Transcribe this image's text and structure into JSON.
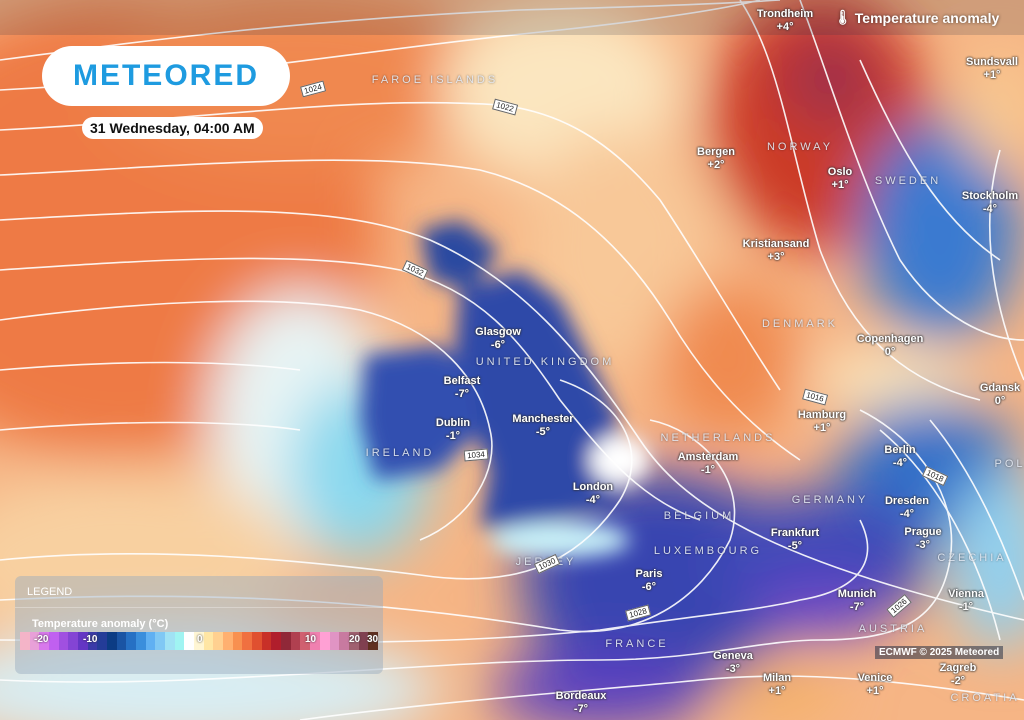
{
  "brand": "METEORED",
  "date_label": "31 Wednesday, 04:00 AM",
  "layer_title": "Temperature anomaly",
  "layer_icon": "thermometer-icon",
  "copyright": "ECMWF © 2025 Meteored",
  "legend": {
    "title": "LEGEND",
    "subtitle": "Temperature anomaly (°C)",
    "labels": [
      "-20",
      "-10",
      "0",
      "10",
      "20",
      "30"
    ],
    "colors": [
      "#f4b4c8",
      "#e8a0d8",
      "#d878ec",
      "#c060f0",
      "#a050e0",
      "#8444d4",
      "#6436c4",
      "#3a3aa8",
      "#243c98",
      "#0c3c84",
      "#1a54a4",
      "#2670c4",
      "#3a8edc",
      "#60b0f2",
      "#80c8f4",
      "#a0e2f4",
      "#a0f4f2",
      "#ffffff",
      "#fff6d4",
      "#ffe6a4",
      "#ffd090",
      "#ffb070",
      "#f89050",
      "#f07040",
      "#e05030",
      "#c83028",
      "#b01e2c",
      "#902838",
      "#b04050",
      "#d06070",
      "#f080b0",
      "#ffa0d4",
      "#e094c4",
      "#c87aa0",
      "#a06070",
      "#804050",
      "#603020"
    ]
  },
  "cities": [
    {
      "name": "Trondheim",
      "temp": "+4°"
    },
    {
      "name": "Sundsvall",
      "temp": "+1°"
    },
    {
      "name": "Bergen",
      "temp": "+2°"
    },
    {
      "name": "Oslo",
      "temp": "+1°"
    },
    {
      "name": "Stockholm",
      "temp": "-4°"
    },
    {
      "name": "Kristiansand",
      "temp": "+3°"
    },
    {
      "name": "Glasgow",
      "temp": "-6°"
    },
    {
      "name": "Belfast",
      "temp": "-7°"
    },
    {
      "name": "Dublin",
      "temp": "-1°"
    },
    {
      "name": "Manchester",
      "temp": "-5°"
    },
    {
      "name": "Copenhagen",
      "temp": "0°"
    },
    {
      "name": "Gdansk",
      "temp": "0°"
    },
    {
      "name": "Hamburg",
      "temp": "+1°"
    },
    {
      "name": "Amsterdam",
      "temp": "-1°"
    },
    {
      "name": "Berlin",
      "temp": "-4°"
    },
    {
      "name": "London",
      "temp": "-4°"
    },
    {
      "name": "Dresden",
      "temp": "-4°"
    },
    {
      "name": "Frankfurt",
      "temp": "-5°"
    },
    {
      "name": "Prague",
      "temp": "-3°"
    },
    {
      "name": "Paris",
      "temp": "-6°"
    },
    {
      "name": "Munich",
      "temp": "-7°"
    },
    {
      "name": "Vienna",
      "temp": "-1°"
    },
    {
      "name": "Geneva",
      "temp": "-3°"
    },
    {
      "name": "Zagreb",
      "temp": "-2°"
    },
    {
      "name": "Milan",
      "temp": "+1°"
    },
    {
      "name": "Venice",
      "temp": "+1°"
    },
    {
      "name": "Bordeaux",
      "temp": "-7°"
    }
  ],
  "countries": [
    "FAROE ISLANDS",
    "NORWAY",
    "SWEDEN",
    "DENMARK",
    "UNITED KINGDOM",
    "IRELAND",
    "NETHERLANDS",
    "BELGIUM",
    "LUXEMBOURG",
    "GERMANY",
    "FRANCE",
    "AUSTRIA",
    "CZECHIA",
    "CROATIA",
    "POL",
    "JERSEY"
  ],
  "isobars": [
    "1024",
    "1022",
    "1032",
    "1034",
    "1030",
    "1028",
    "1026",
    "1016",
    "1018"
  ]
}
